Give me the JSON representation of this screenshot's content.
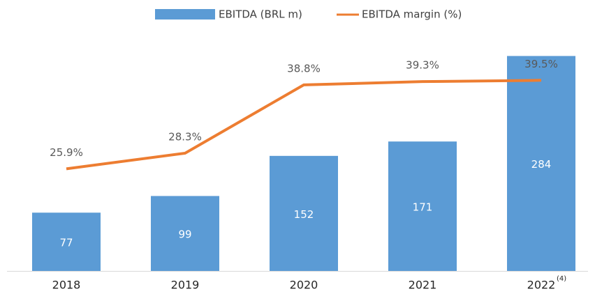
{
  "chart_data": {
    "type": "bar_line",
    "categories": [
      "2018",
      "2019",
      "2020",
      "2021",
      "2022"
    ],
    "annotations": [
      "(4)"
    ],
    "series": [
      {
        "name": "EBITDA (BRL m)",
        "type": "bar",
        "color": "#5b9bd5",
        "values": [
          77,
          99,
          152,
          171,
          284
        ]
      },
      {
        "name": "EBITDA margin (%)",
        "type": "line",
        "axis": "y2",
        "color": "#ed7d31",
        "values": [
          25.9,
          28.3,
          38.8,
          39.3,
          39.5
        ],
        "value_labels": [
          "25.9%",
          "28.3%",
          "38.8%",
          "39.3%",
          "39.5%"
        ]
      }
    ],
    "ylim": [
      0,
      300
    ],
    "y2lim": [
      10.2,
      45.1
    ],
    "legend": "top",
    "grid": false
  }
}
